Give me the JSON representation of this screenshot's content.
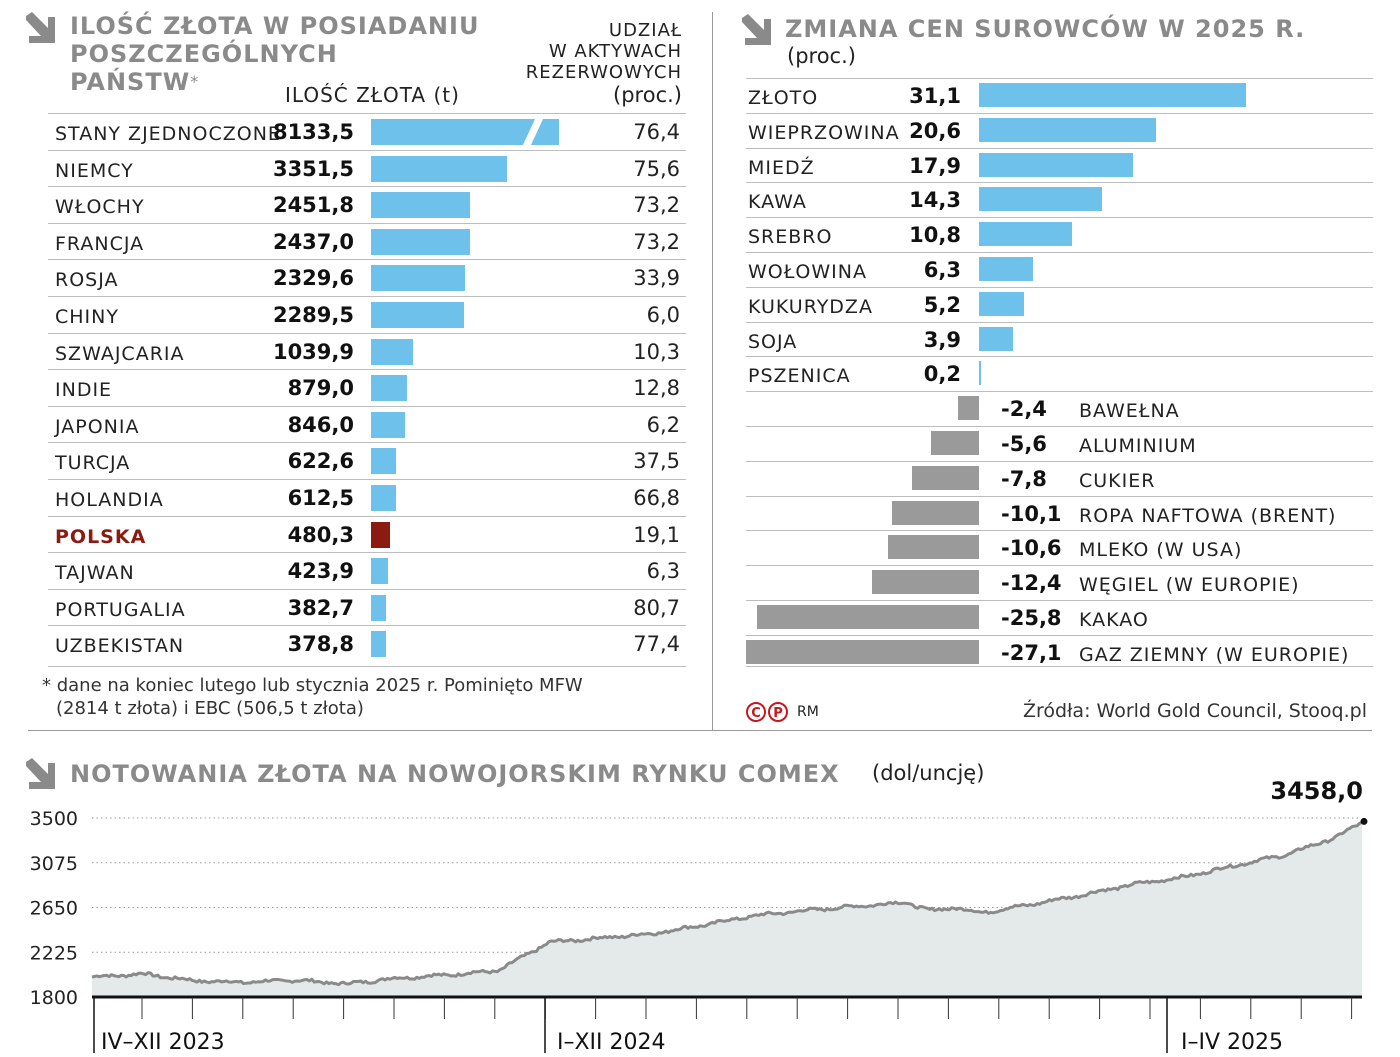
{
  "gold_holdings": {
    "title": [
      "ILOŚĆ ZŁOTA W POSIADANIU",
      "POSZCZEGÓLNYCH",
      "PAŃSTW"
    ],
    "asterisk": "*",
    "col_amount": "ILOŚĆ ZŁOTA (t)",
    "col_share": [
      "UDZIAŁ",
      "W AKTYWACH",
      "REZERWOWYCH",
      "(proc.)"
    ],
    "footnote": [
      "* dane na koniec lutego lub stycznia 2025 r. Pominięto MFW",
      "(2814 t złota) i EBC (506,5 t złota)"
    ],
    "bar_color": "#6ec1ea",
    "highlight_color": "#8b1a10",
    "rows": [
      {
        "name": "STANY ZJEDNOCZONE",
        "amount": "8133,5",
        "value": 8133.5,
        "share": "76,4",
        "highlight": false,
        "broken": true
      },
      {
        "name": "NIEMCY",
        "amount": "3351,5",
        "value": 3351.5,
        "share": "75,6",
        "highlight": false
      },
      {
        "name": "WŁOCHY",
        "amount": "2451,8",
        "value": 2451.8,
        "share": "73,2",
        "highlight": false
      },
      {
        "name": "FRANCJA",
        "amount": "2437,0",
        "value": 2437.0,
        "share": "73,2",
        "highlight": false
      },
      {
        "name": "ROSJA",
        "amount": "2329,6",
        "value": 2329.6,
        "share": "33,9",
        "highlight": false
      },
      {
        "name": "CHINY",
        "amount": "2289,5",
        "value": 2289.5,
        "share": "6,0",
        "highlight": false
      },
      {
        "name": "SZWAJCARIA",
        "amount": "1039,9",
        "value": 1039.9,
        "share": "10,3",
        "highlight": false
      },
      {
        "name": "INDIE",
        "amount": "879,0",
        "value": 879.0,
        "share": "12,8",
        "highlight": false
      },
      {
        "name": "JAPONIA",
        "amount": "846,0",
        "value": 846.0,
        "share": "6,2",
        "highlight": false
      },
      {
        "name": "TURCJA",
        "amount": "622,6",
        "value": 622.6,
        "share": "37,5",
        "highlight": false
      },
      {
        "name": "HOLANDIA",
        "amount": "612,5",
        "value": 612.5,
        "share": "66,8",
        "highlight": false
      },
      {
        "name": "POLSKA",
        "amount": "480,3",
        "value": 480.3,
        "share": "19,1",
        "highlight": true
      },
      {
        "name": "TAJWAN",
        "amount": "423,9",
        "value": 423.9,
        "share": "6,3",
        "highlight": false
      },
      {
        "name": "PORTUGALIA",
        "amount": "382,7",
        "value": 382.7,
        "share": "80,7",
        "highlight": false
      },
      {
        "name": "UZBEKISTAN",
        "amount": "378,8",
        "value": 378.8,
        "share": "77,4",
        "highlight": false
      }
    ]
  },
  "commodities": {
    "title": "ZMIANA CEN SUROWCÓW W 2025 R.",
    "unit": "(proc.)",
    "pos_color": "#6ec1ea",
    "neg_color": "#9a9a9a",
    "rows": [
      {
        "name": "ZŁOTO",
        "label": "31,1",
        "value": 31.1
      },
      {
        "name": "WIEPRZOWINA",
        "label": "20,6",
        "value": 20.6
      },
      {
        "name": "MIEDŹ",
        "label": "17,9",
        "value": 17.9
      },
      {
        "name": "KAWA",
        "label": "14,3",
        "value": 14.3
      },
      {
        "name": "SREBRO",
        "label": "10,8",
        "value": 10.8
      },
      {
        "name": "WOŁOWINA",
        "label": "6,3",
        "value": 6.3
      },
      {
        "name": "KUKURYDZA",
        "label": "5,2",
        "value": 5.2
      },
      {
        "name": "SOJA",
        "label": "3,9",
        "value": 3.9
      },
      {
        "name": "PSZENICA",
        "label": "0,2",
        "value": 0.2
      },
      {
        "name": "BAWEŁNA",
        "label": "-2,4",
        "value": -2.4
      },
      {
        "name": "ALUMINIUM",
        "label": "-5,6",
        "value": -5.6
      },
      {
        "name": "CUKIER",
        "label": "-7,8",
        "value": -7.8
      },
      {
        "name": "ROPA NAFTOWA (BRENT)",
        "label": "-10,1",
        "value": -10.1
      },
      {
        "name": "MLEKO (W USA)",
        "label": "-10,6",
        "value": -10.6
      },
      {
        "name": "WĘGIEL (W EUROPIE)",
        "label": "-12,4",
        "value": -12.4
      },
      {
        "name": "KAKAO",
        "label": "-25,8",
        "value": -25.8
      },
      {
        "name": "GAZ ZIEMNY (W EUROPIE)",
        "label": "-27,1",
        "value": -27.1
      }
    ],
    "copyright": "RM",
    "sources": "Źródła: World Gold Council, Stooq.pl"
  },
  "chart_data": {
    "type": "area",
    "title": "NOTOWANIA ZŁOTA NA NOWOJORSKIM RYNKU COMEX",
    "unit": "(dol/uncję)",
    "ylim": [
      1800,
      3500
    ],
    "yticks": [
      3500,
      3075,
      2650,
      2225,
      1800
    ],
    "period_labels": [
      "IV–XII 2023",
      "I–XII 2024",
      "I–IV 2025"
    ],
    "last_value_label": "3458,0",
    "line_color": "#8a8a8a",
    "fill_color": "#e4e9ea",
    "series": [
      {
        "name": "COMEX gold",
        "x": [
          0,
          4,
          8,
          12,
          16,
          20,
          24,
          28,
          32,
          36,
          40,
          44,
          48,
          52,
          56,
          60,
          64,
          66,
          68,
          70,
          74,
          78,
          82,
          86,
          90,
          94,
          98,
          100
        ],
        "values": [
          1990,
          2020,
          1955,
          1940,
          1960,
          1925,
          1980,
          2010,
          2050,
          2320,
          2360,
          2400,
          2480,
          2570,
          2620,
          2660,
          2700,
          2620,
          2650,
          2600,
          2680,
          2770,
          2870,
          2940,
          3050,
          3150,
          3320,
          3458
        ]
      }
    ]
  }
}
